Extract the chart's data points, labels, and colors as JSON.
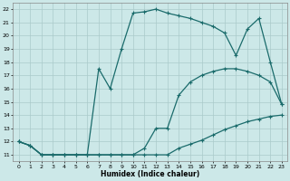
{
  "title": "",
  "xlabel": "Humidex (Indice chaleur)",
  "background_color": "#cce8e8",
  "grid_color": "#aacaca",
  "line_color": "#1a6b6b",
  "xlim": [
    -0.5,
    23.5
  ],
  "ylim": [
    10.5,
    22.5
  ],
  "yticks": [
    11,
    12,
    13,
    14,
    15,
    16,
    17,
    18,
    19,
    20,
    21,
    22
  ],
  "xticks": [
    0,
    1,
    2,
    3,
    4,
    5,
    6,
    7,
    8,
    9,
    10,
    11,
    12,
    13,
    14,
    15,
    16,
    17,
    18,
    19,
    20,
    21,
    22,
    23
  ],
  "line1_x": [
    0,
    1,
    2,
    3,
    4,
    5,
    6,
    7,
    8,
    9,
    10,
    11,
    12,
    13,
    14,
    15,
    16,
    17,
    18,
    19,
    20,
    21,
    22,
    23
  ],
  "line1_y": [
    12,
    11.7,
    11,
    11,
    11,
    11,
    11,
    11,
    11,
    11,
    11,
    11,
    11,
    11,
    11.5,
    11.8,
    12.1,
    12.5,
    12.9,
    13.2,
    13.5,
    13.7,
    13.9,
    14.0
  ],
  "line2_x": [
    0,
    1,
    2,
    3,
    4,
    5,
    6,
    7,
    8,
    9,
    10,
    11,
    12,
    13,
    14,
    15,
    16,
    17,
    18,
    19,
    20,
    21,
    22,
    23
  ],
  "line2_y": [
    12,
    11.7,
    11,
    11,
    11,
    11,
    11,
    11,
    11,
    11,
    11,
    11.5,
    13.0,
    13.0,
    15.5,
    16.5,
    17.0,
    17.3,
    17.5,
    17.5,
    17.3,
    17.0,
    16.5,
    14.8
  ],
  "line3_x": [
    0,
    1,
    2,
    3,
    4,
    5,
    6,
    7,
    8,
    9,
    10,
    11,
    12,
    13,
    14,
    15,
    16,
    17,
    18,
    19,
    20,
    21,
    22,
    23
  ],
  "line3_y": [
    12,
    11.7,
    11,
    11,
    11,
    11,
    11,
    17.5,
    16.0,
    19.0,
    21.7,
    21.8,
    22.0,
    21.7,
    21.5,
    21.3,
    21.0,
    20.7,
    20.2,
    18.5,
    20.5,
    21.3,
    18.0,
    14.8
  ]
}
